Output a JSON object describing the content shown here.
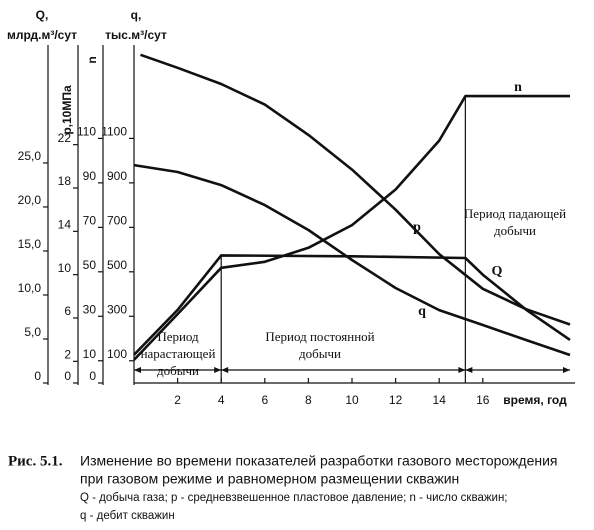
{
  "chart_data": {
    "type": "line",
    "x_label": "время, год",
    "xlim": [
      0,
      20
    ],
    "xticks": [
      2,
      4,
      6,
      8,
      10,
      12,
      14,
      16
    ],
    "y_axes": [
      {
        "title": [
          "Q,",
          "млрд.м³/сут"
        ],
        "ylim": [
          0,
          38.4
        ],
        "yticks": [
          0,
          {
            "value": 5,
            "label": "5,0"
          },
          {
            "value": 10,
            "label": "10,0"
          },
          {
            "value": 15,
            "label": "15,0"
          },
          {
            "value": 20,
            "label": "20,0"
          },
          {
            "value": 25,
            "label": "25,0"
          }
        ]
      },
      {
        "title": [
          "p,10МПа"
        ],
        "ylim": [
          0,
          31.2
        ],
        "yticks": [
          0,
          2,
          6,
          10,
          14,
          18,
          22
        ]
      },
      {
        "title": [
          "n"
        ],
        "ylim": [
          0,
          152
        ],
        "yticks": [
          0,
          10,
          30,
          50,
          70,
          90,
          110
        ]
      },
      {
        "title": [
          "q,",
          "тыс.м³/сут"
        ],
        "ylim": [
          0,
          1520
        ],
        "yticks": [
          100,
          300,
          500,
          700,
          900,
          1100
        ]
      }
    ],
    "series": [
      {
        "name": "Q",
        "axis": 0,
        "color": "#111111",
        "x": [
          0,
          2,
          4,
          10,
          15.2,
          16,
          18,
          20
        ],
        "values": [
          3.2,
          8.3,
          14.5,
          14.4,
          14.2,
          12.3,
          8.3,
          4.9
        ]
      },
      {
        "name": "p",
        "axis": 1,
        "color": "#111111",
        "x": [
          0.3,
          2,
          4,
          6,
          8,
          10,
          12,
          14,
          16,
          18,
          20
        ],
        "values": [
          30.3,
          29.1,
          27.6,
          25.7,
          22.9,
          19.7,
          16,
          11.9,
          8.7,
          6.8,
          5.4
        ]
      },
      {
        "name": "n",
        "axis": 2,
        "color": "#111111",
        "x": [
          0,
          2,
          4,
          6,
          8,
          10,
          12,
          14,
          15.2,
          20
        ],
        "values": [
          10.4,
          31,
          51.8,
          54.5,
          60.8,
          71,
          87,
          109,
          129,
          129
        ]
      },
      {
        "name": "q",
        "axis": 3,
        "color": "#111111",
        "x": [
          0,
          2,
          4,
          6,
          8,
          10,
          12,
          14,
          16,
          18,
          20
        ],
        "values": [
          980,
          949,
          890,
          800,
          688,
          553,
          427,
          328,
          261,
          193,
          126
        ]
      }
    ],
    "periods": [
      {
        "lines": [
          "Период",
          "нарастающей",
          "добычи"
        ]
      },
      {
        "lines": [
          "Период постоянной",
          "добычи"
        ]
      },
      {
        "lines": [
          "Период падающей",
          "добычи"
        ]
      }
    ],
    "caption": {
      "label": "Рис. 5.1.",
      "lines": [
        "Изменение во времени показателей разработки газового месторождения",
        "при газовом режиме и равномерном размещении скважин",
        "Q - добыча газа; р - средневзвешенное пластовое давление; n - число скважин;",
        "q - дебит скважин"
      ]
    }
  }
}
